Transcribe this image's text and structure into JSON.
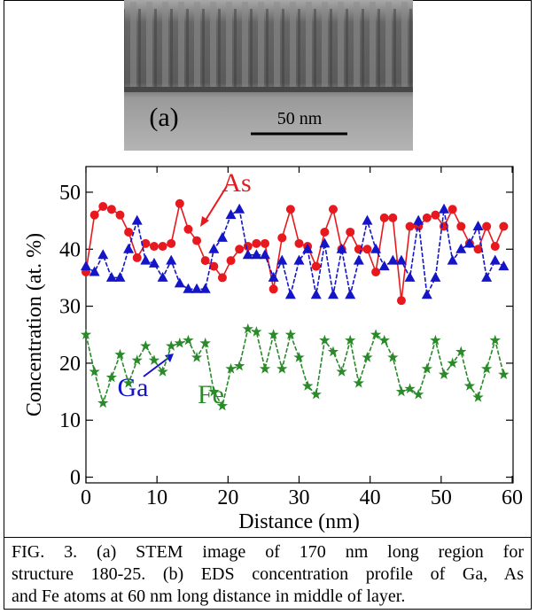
{
  "image_label": "(a)",
  "scale_bar": "50 nm",
  "chart_data": {
    "type": "line",
    "xlabel": "Distance (nm)",
    "ylabel": "Concentration (at. %)",
    "xlim": [
      0,
      60
    ],
    "ylim": [
      -1,
      54.5
    ],
    "xticks": [
      0,
      10,
      20,
      30,
      40,
      50,
      60
    ],
    "yticks": [
      0,
      10,
      20,
      30,
      40,
      50
    ],
    "x": [
      0,
      1.2,
      2.4,
      3.6,
      4.8,
      6,
      7.2,
      8.4,
      9.6,
      10.8,
      12,
      13.2,
      14.4,
      15.6,
      16.8,
      18,
      19.2,
      20.4,
      21.6,
      22.8,
      24,
      25.2,
      26.4,
      27.6,
      28.8,
      30,
      31.2,
      32.4,
      33.6,
      34.8,
      36,
      37.2,
      38.4,
      39.6,
      40.8,
      42,
      43.2,
      44.4,
      45.6,
      46.8,
      48,
      49.2,
      50.4,
      51.6,
      52.8,
      54,
      55.2,
      56.4,
      57.6,
      58.8
    ],
    "series": [
      {
        "name": "As",
        "color": "#e8191e",
        "marker": "circle",
        "dash": false,
        "values": [
          36,
          46,
          47.5,
          47,
          46,
          43,
          38.5,
          41,
          40.5,
          40.5,
          41,
          48,
          43.5,
          41.5,
          38,
          37,
          35,
          38,
          40,
          40.5,
          41,
          41,
          33,
          42,
          47,
          41,
          40.5,
          37,
          43,
          47,
          40,
          43,
          40,
          40,
          36,
          45.5,
          45.5,
          31,
          44,
          44,
          45.5,
          46,
          44,
          47,
          44,
          41,
          40,
          44,
          40.5,
          44
        ]
      },
      {
        "name": "Ga",
        "color": "#1515c8",
        "marker": "triangle",
        "dash": true,
        "values": [
          37,
          36,
          39,
          35,
          35,
          40,
          45,
          38,
          37.5,
          35,
          38,
          34,
          33,
          33,
          33,
          40,
          42,
          46,
          47,
          39,
          39,
          39,
          35,
          38,
          32,
          38,
          40,
          32,
          41,
          32,
          40,
          32,
          38,
          45,
          40,
          37,
          38,
          38,
          35,
          45,
          32,
          35,
          47,
          38,
          40,
          41,
          44,
          35,
          38,
          37
        ]
      },
      {
        "name": "Fe",
        "color": "#2a8a2a",
        "marker": "star",
        "dash": true,
        "values": [
          25,
          18.5,
          13,
          17.5,
          21.5,
          16.5,
          20.5,
          23,
          20.5,
          18.5,
          23,
          23.5,
          24,
          21,
          23.5,
          15,
          12.5,
          19,
          19.5,
          26,
          25.5,
          19,
          25,
          19,
          25,
          21,
          16,
          14.5,
          24,
          22,
          18.5,
          24,
          16.5,
          21,
          25,
          24,
          21,
          15,
          15.5,
          14.5,
          19,
          24,
          18,
          20,
          22,
          16,
          14,
          19,
          24,
          18
        ]
      }
    ]
  },
  "caption": [
    "FIG. 3. (a) STEM image of 170 nm long region for",
    "structure 180-25. (b) EDS concentration profile of Ga, As",
    "and Fe atoms at 60 nm long distance in middle of layer."
  ]
}
